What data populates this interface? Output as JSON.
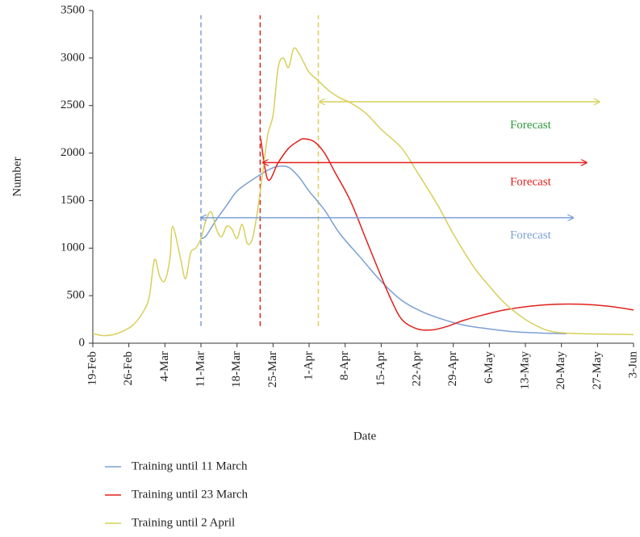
{
  "chart_data": {
    "type": "line",
    "x_label": "Date",
    "y_label": "Number",
    "xlim": [
      0,
      105
    ],
    "ylim": [
      0,
      3500
    ],
    "yticks": [
      0,
      500,
      1000,
      1500,
      2000,
      2500,
      3000,
      3500
    ],
    "xticks": [
      {
        "value": 0,
        "label": "19-Feb"
      },
      {
        "value": 7,
        "label": "26-Feb"
      },
      {
        "value": 14,
        "label": "4-Mar"
      },
      {
        "value": 21,
        "label": "11-Mar"
      },
      {
        "value": 28,
        "label": "18-Mar"
      },
      {
        "value": 35,
        "label": "25-Mar"
      },
      {
        "value": 42,
        "label": "1-Apr"
      },
      {
        "value": 49,
        "label": "8-Apr"
      },
      {
        "value": 56,
        "label": "15-Apr"
      },
      {
        "value": 63,
        "label": "22-Apr"
      },
      {
        "value": 70,
        "label": "29-Apr"
      },
      {
        "value": 77,
        "label": "6-May"
      },
      {
        "value": 84,
        "label": "13-May"
      },
      {
        "value": 91,
        "label": "20-May"
      },
      {
        "value": 98,
        "label": "27-May"
      },
      {
        "value": 105,
        "label": "3-Jun"
      }
    ],
    "grid": false,
    "series": [
      {
        "name": "Training until 11 March",
        "color": "#7b9fd4",
        "x": [
          21,
          22,
          24,
          26,
          28,
          31,
          34,
          36,
          38,
          40,
          42,
          45,
          48,
          52,
          56,
          60,
          64,
          68,
          72,
          77,
          82,
          88,
          92
        ],
        "values": [
          1100,
          1130,
          1300,
          1450,
          1600,
          1720,
          1820,
          1860,
          1850,
          1750,
          1600,
          1400,
          1150,
          900,
          650,
          450,
          330,
          250,
          190,
          150,
          120,
          105,
          100
        ]
      },
      {
        "name": "Training until 23 March",
        "color": "#e0201b",
        "x": [
          32.6,
          34,
          36,
          38,
          40,
          41,
          43,
          45,
          47,
          50,
          53,
          56,
          58,
          60,
          63,
          66,
          69,
          72,
          76,
          80,
          85,
          90,
          95,
          100,
          105
        ],
        "values": [
          2150,
          1720,
          1900,
          2050,
          2130,
          2150,
          2120,
          2000,
          1800,
          1500,
          1100,
          700,
          450,
          250,
          150,
          140,
          180,
          240,
          300,
          350,
          390,
          410,
          410,
          390,
          350
        ]
      },
      {
        "name": "Training until 2 April",
        "color": "#d8cf5a",
        "x": [
          0,
          2,
          4,
          6,
          8,
          10,
          11,
          12,
          13,
          14,
          15,
          15.5,
          17,
          18,
          19,
          20,
          21,
          22,
          23,
          24,
          25,
          26,
          27,
          28,
          29,
          30,
          31,
          32,
          33,
          34,
          35,
          36,
          37,
          38,
          39,
          40,
          41,
          42,
          44,
          46,
          48,
          50,
          53,
          56,
          60,
          63,
          67,
          70,
          74,
          77,
          80,
          84,
          88,
          91,
          95,
          100,
          105
        ],
        "values": [
          100,
          80,
          90,
          130,
          200,
          350,
          500,
          880,
          700,
          660,
          900,
          1230,
          900,
          680,
          950,
          1000,
          1100,
          1300,
          1380,
          1200,
          1120,
          1230,
          1200,
          1100,
          1250,
          1050,
          1100,
          1400,
          1800,
          2200,
          2400,
          2900,
          3000,
          2900,
          3100,
          3050,
          2950,
          2850,
          2750,
          2650,
          2580,
          2530,
          2420,
          2250,
          2050,
          1800,
          1450,
          1150,
          800,
          600,
          420,
          250,
          140,
          110,
          100,
          95,
          90
        ]
      }
    ],
    "markers": [
      {
        "x": 21,
        "y": [
          180,
          3450
        ],
        "color": "#7b9fd4"
      },
      {
        "x": 32.5,
        "y": [
          180,
          3450
        ],
        "color": "#e0201b"
      },
      {
        "x": 43.8,
        "y": [
          180,
          3450
        ],
        "color": "#d8cf5a"
      }
    ],
    "arrows": [
      {
        "x": [
          21,
          93.3
        ],
        "y": 1320,
        "color": "#7b9fd4"
      },
      {
        "x": [
          33,
          95.9
        ],
        "y": 1900,
        "color": "#e0201b"
      },
      {
        "x": [
          44,
          98.4
        ],
        "y": 2540,
        "color": "#d8cf5a"
      }
    ],
    "annotations": [
      {
        "text": "Forecast",
        "x": 85,
        "y": 2290,
        "color": "#2e9a3a"
      },
      {
        "text": "Forecast",
        "x": 85,
        "y": 1690,
        "color": "#e0201b"
      },
      {
        "text": "Forecast",
        "x": 85,
        "y": 1130,
        "color": "#7b9fd4"
      }
    ]
  }
}
